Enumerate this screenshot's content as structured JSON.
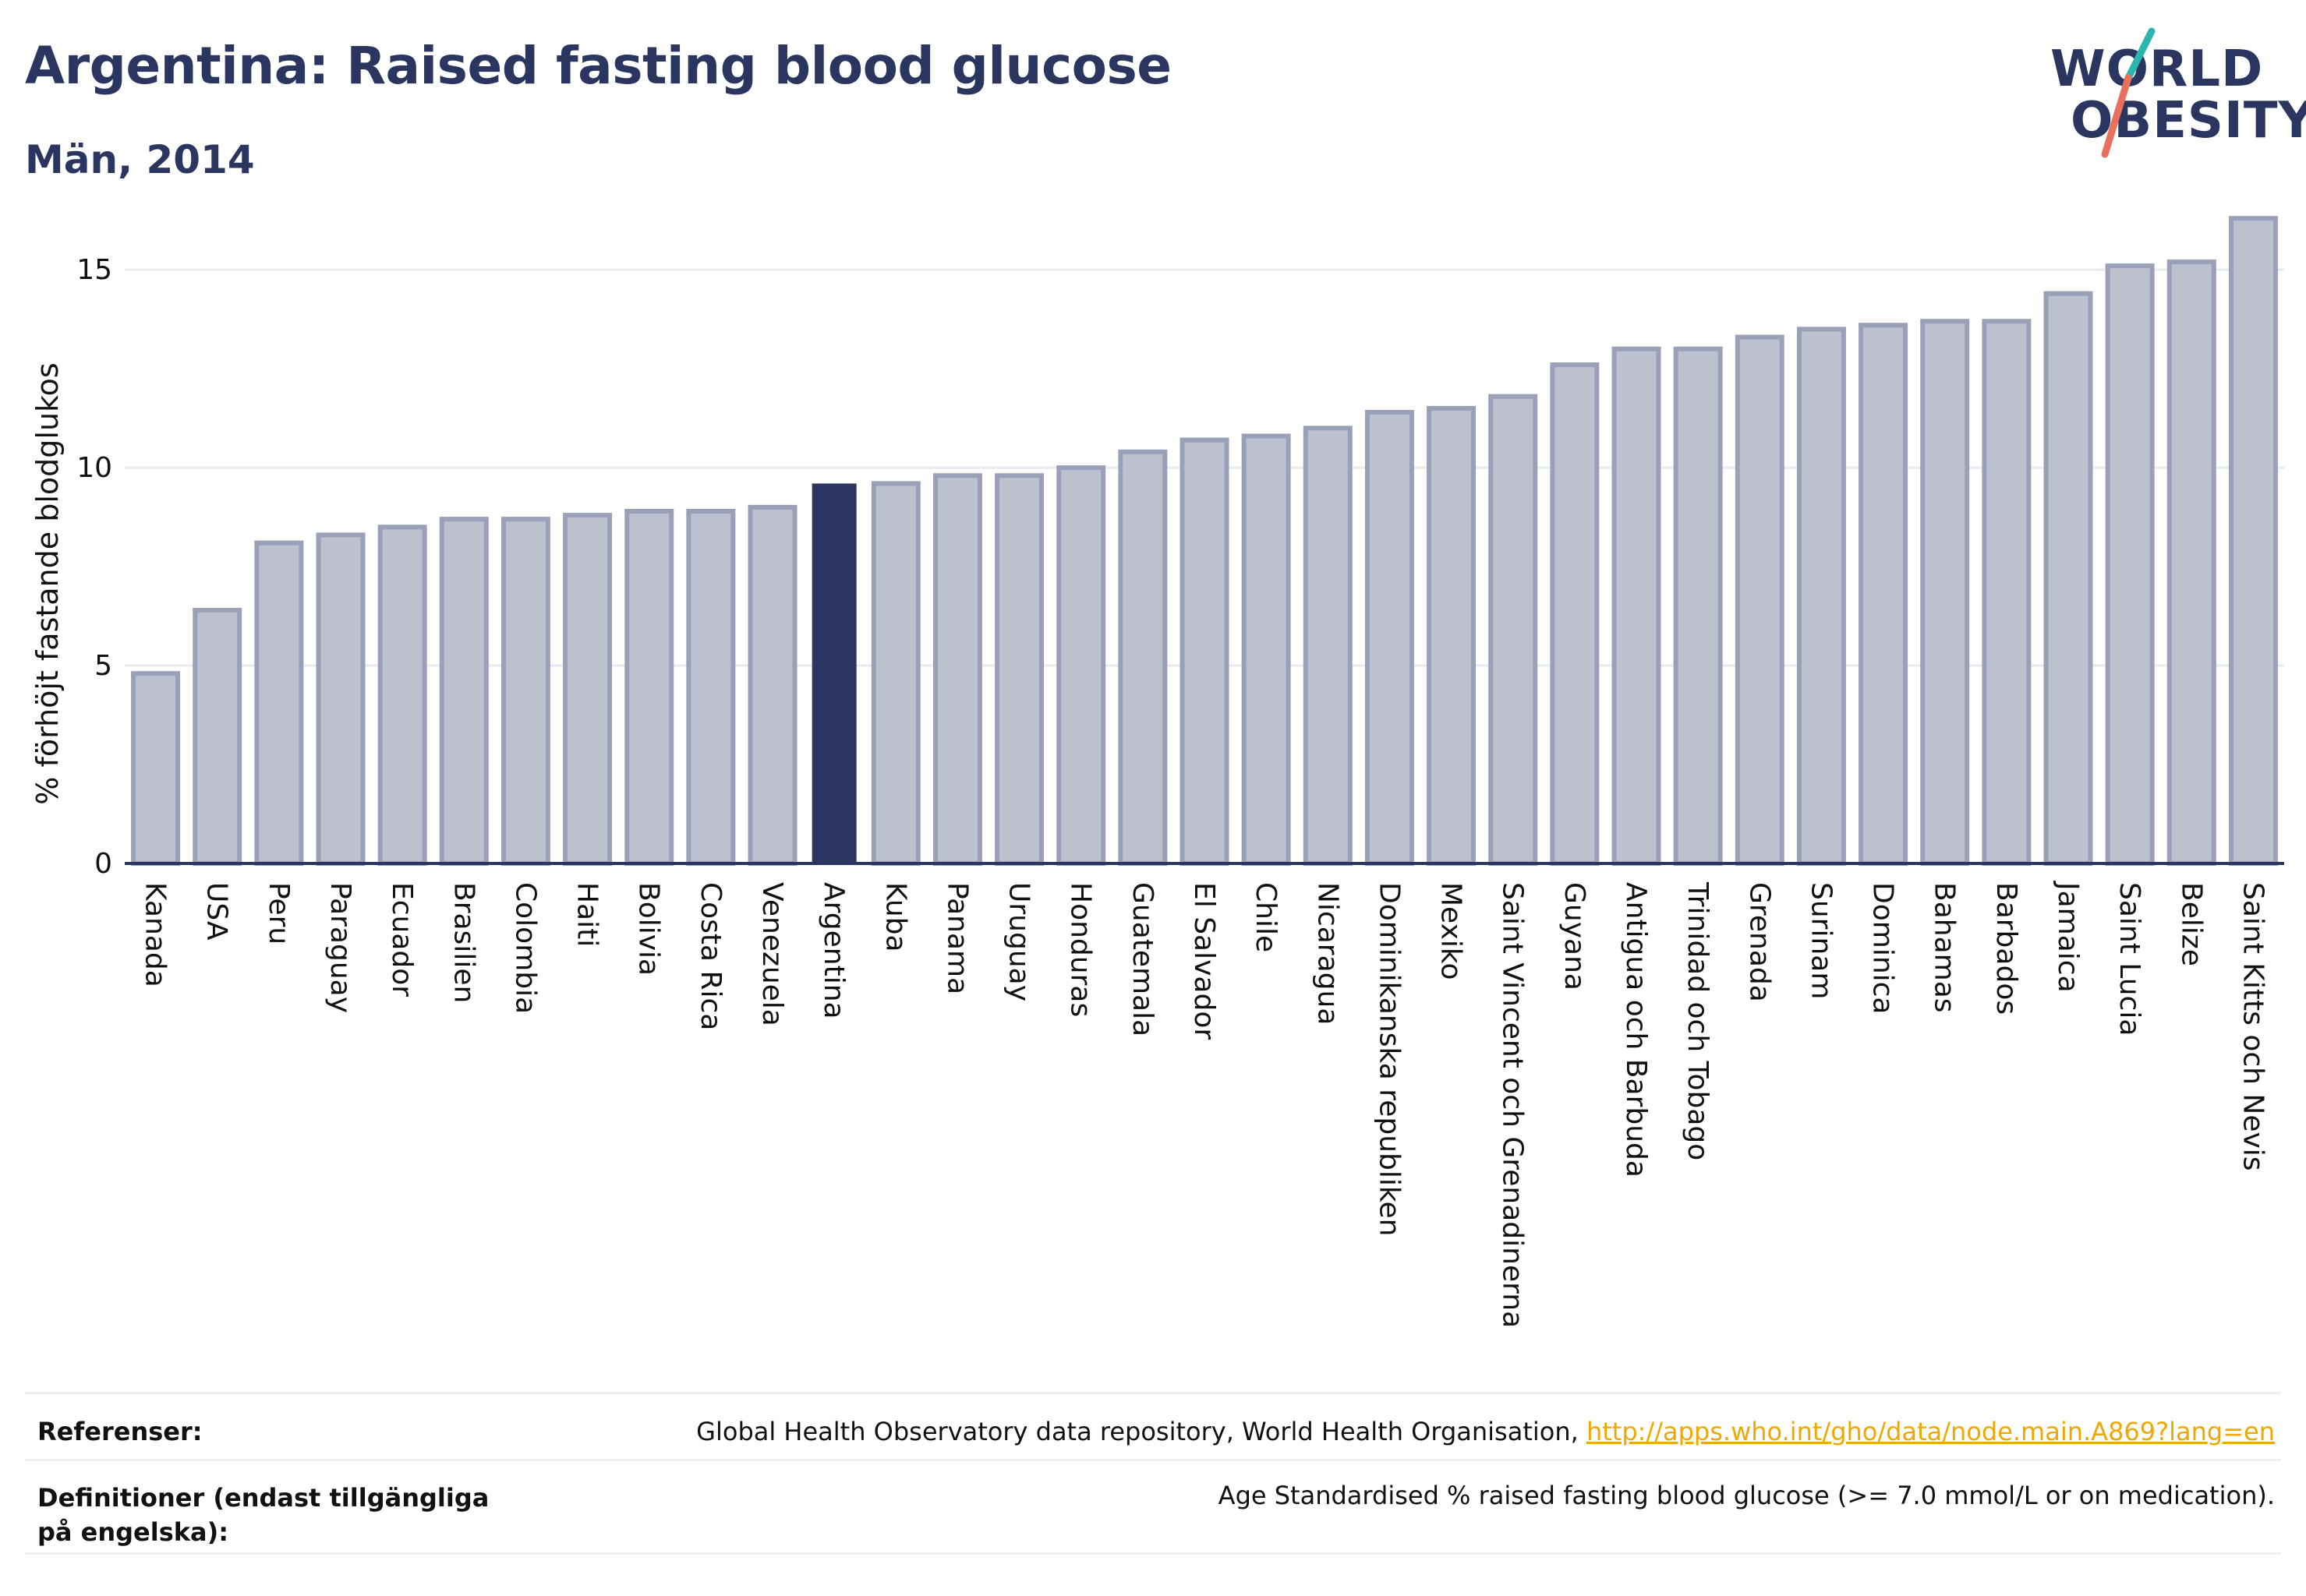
{
  "header": {
    "title": "Argentina: Raised fasting blood glucose",
    "subtitle": "Män, 2014"
  },
  "logo": {
    "line1": "WORLD",
    "line2": "OBESITY"
  },
  "colors": {
    "bar": "#bcc0cf",
    "bar_border": "#9aa0b8",
    "highlight": "#2b3660",
    "text": "#2b3660"
  },
  "chart_data": {
    "type": "bar",
    "ylabel": "% förhöjt fastande blodglukos",
    "ylim": [
      0,
      16.5
    ],
    "yticks": [
      0,
      5,
      10,
      15
    ],
    "highlight": "Argentina",
    "grid": true,
    "categories": [
      "Kanada",
      "USA",
      "Peru",
      "Paraguay",
      "Ecuador",
      "Brasilien",
      "Colombia",
      "Haiti",
      "Bolivia",
      "Costa Rica",
      "Venezuela",
      "Argentina",
      "Kuba",
      "Panama",
      "Uruguay",
      "Honduras",
      "Guatemala",
      "El Salvador",
      "Chile",
      "Nicaragua",
      "Dominikanska republiken",
      "Mexiko",
      "Saint Vincent och Grenadinerna",
      "Guyana",
      "Antigua och Barbuda",
      "Trinidad och Tobago",
      "Grenada",
      "Surinam",
      "Dominica",
      "Bahamas",
      "Barbados",
      "Jamaica",
      "Saint Lucia",
      "Belize",
      "Saint Kitts och Nevis"
    ],
    "values": [
      4.8,
      6.4,
      8.1,
      8.3,
      8.5,
      8.7,
      8.7,
      8.8,
      8.9,
      8.9,
      9.0,
      9.6,
      9.6,
      9.8,
      9.8,
      10.0,
      10.4,
      10.7,
      10.8,
      11.0,
      11.4,
      11.5,
      11.8,
      12.6,
      13.0,
      13.0,
      13.3,
      13.5,
      13.6,
      13.7,
      13.7,
      14.4,
      15.1,
      15.2,
      16.3
    ]
  },
  "footer": {
    "ref_label": "Referenser:",
    "ref_text": "Global Health Observatory data repository, World Health Organisation, ",
    "ref_link": "http://apps.who.int/gho/data/node.main.A869?lang=en",
    "def_label": "Definitioner (endast tillgängliga på engelska):",
    "def_text": "Age Standardised % raised fasting blood glucose (>= 7.0 mmol/L or on medication)."
  }
}
